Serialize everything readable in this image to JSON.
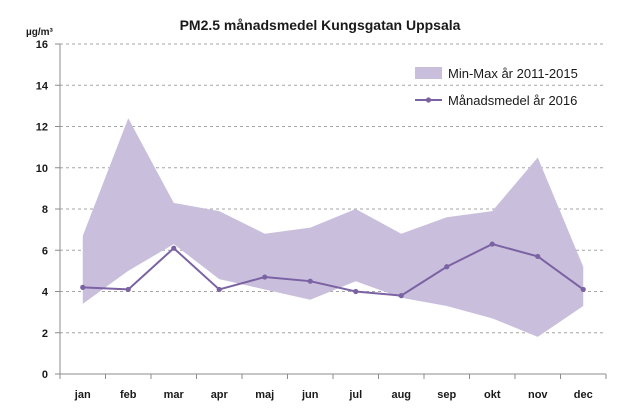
{
  "chart_data": {
    "type": "area",
    "title": "PM2.5 månadsmedel Kungsgatan Uppsala",
    "ylabel": "µg/m³",
    "xlabel": "",
    "categories": [
      "jan",
      "feb",
      "mar",
      "apr",
      "maj",
      "jun",
      "jul",
      "aug",
      "sep",
      "okt",
      "nov",
      "dec"
    ],
    "ylim": [
      0,
      16
    ],
    "yticks": [
      "0",
      "2",
      "4",
      "6",
      "8",
      "10",
      "12",
      "14",
      "16"
    ],
    "grid": "horizontal dashed",
    "legend_position": "top-right",
    "series": [
      {
        "name": "Min-Max år 2011-2015",
        "kind": "range-band",
        "color": "#c9bfdd",
        "min": [
          3.4,
          5.0,
          6.3,
          4.6,
          4.1,
          3.6,
          4.5,
          3.7,
          3.3,
          2.7,
          1.8,
          3.3
        ],
        "max": [
          6.7,
          12.4,
          8.3,
          7.9,
          6.8,
          7.1,
          8.0,
          6.8,
          7.6,
          7.9,
          10.5,
          5.2
        ]
      },
      {
        "name": "Månadsmedel år 2016",
        "kind": "line",
        "color": "#7b62a3",
        "values": [
          4.2,
          4.1,
          6.1,
          4.1,
          4.7,
          4.5,
          4.0,
          3.8,
          5.2,
          6.3,
          5.7,
          4.1
        ]
      }
    ]
  }
}
